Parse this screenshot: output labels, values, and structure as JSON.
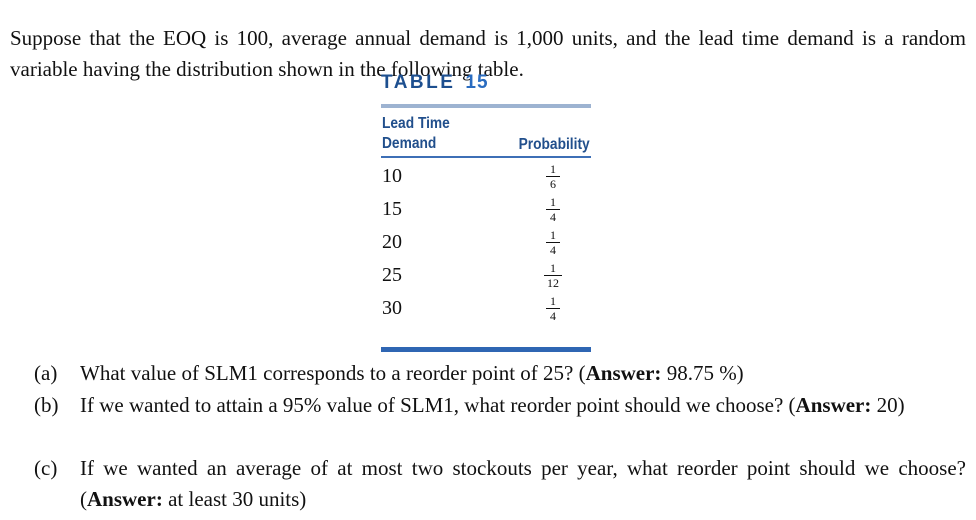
{
  "intro": "Suppose that the EOQ is 100, average annual demand is 1,000 units, and the lead time demand is a random variable having the distribution shown in the following table.",
  "table": {
    "label": "TABLE",
    "number": "15",
    "headers": {
      "demand": "Lead Time Demand",
      "probability": "Probability"
    },
    "rows": [
      {
        "demand": "10",
        "num": "1",
        "den": "6"
      },
      {
        "demand": "15",
        "num": "1",
        "den": "4"
      },
      {
        "demand": "20",
        "num": "1",
        "den": "4"
      },
      {
        "demand": "25",
        "num": "1",
        "den": "12"
      },
      {
        "demand": "30",
        "num": "1",
        "den": "4"
      }
    ]
  },
  "questions": [
    {
      "label": "(a)",
      "text": "What value of SLM1 corresponds to a reorder point of 25? (",
      "answer_key": "Answer:",
      "answer": " 98.75 %)"
    },
    {
      "label": "(b)",
      "text": "If we wanted to attain a 95% value of SLM1, what reorder point should we choose? (",
      "answer_key": "Answer:",
      "answer": " 20)"
    },
    {
      "label": "(c)",
      "text": "If we wanted an average of at most two stockouts per year, what reorder point should we choose? (",
      "answer_key": "Answer:",
      "answer": " at least 30 units)"
    }
  ]
}
